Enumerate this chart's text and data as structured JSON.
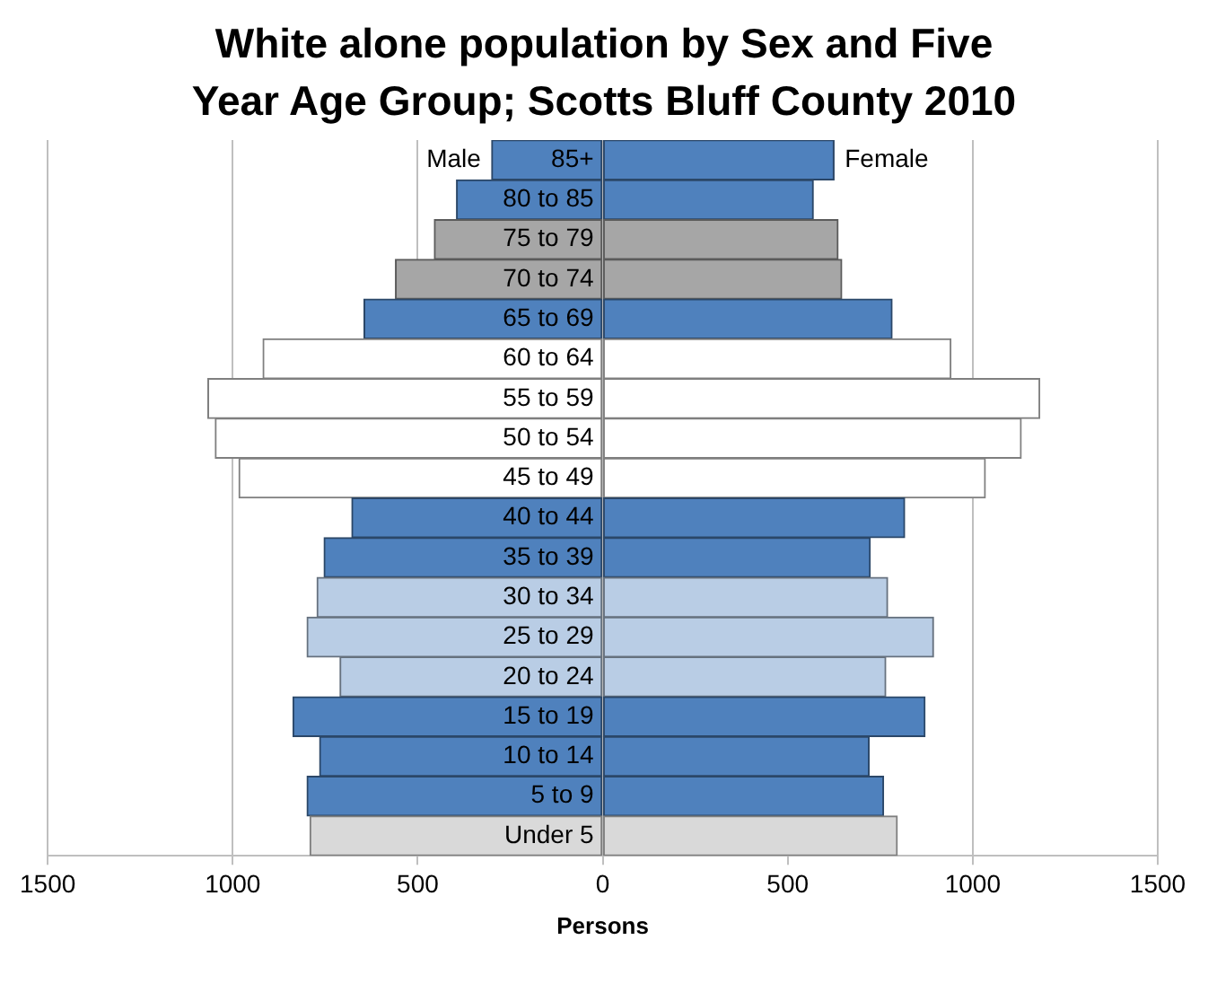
{
  "chart_data": {
    "type": "bar",
    "orientation": "horizontal",
    "stacked": true,
    "title": "White alone population by Sex and Five Year Age Group; Scotts Bluff County 2010",
    "xlabel": "Persons",
    "categories": [
      "85+",
      "80 to 85",
      "75 to 79",
      "70 to 74",
      "65 to 69",
      "60 to 64",
      "55 to 59",
      "50 to 54",
      "45 to 49",
      "40 to 44",
      "35 to 39",
      "30 to 34",
      "25 to 29",
      "20 to 24",
      "15 to 19",
      "10 to 14",
      "5 to 9",
      "Under 5"
    ],
    "series": [
      {
        "name": "Male",
        "colors": [
          "#4f81bd",
          "#4f81bd",
          "#a6a6a6",
          "#a6a6a6",
          "#4f81bd",
          "#ffffff",
          "#ffffff",
          "#ffffff",
          "#ffffff",
          "#4f81bd",
          "#4f81bd",
          "#b9cde5",
          "#b9cde5",
          "#b9cde5",
          "#4f81bd",
          "#4f81bd",
          "#4f81bd",
          "#d9d9d9"
        ],
        "values": [
          -300,
          -395,
          -455,
          -560,
          -645,
          -918,
          -1067,
          -1047,
          -983,
          -678,
          -753,
          -772,
          -799,
          -710,
          -837,
          -765,
          -799,
          -791
        ]
      },
      {
        "name": "Female",
        "colors": [
          "#4f81bd",
          "#4f81bd",
          "#a6a6a6",
          "#a6a6a6",
          "#4f81bd",
          "#ffffff",
          "#ffffff",
          "#ffffff",
          "#ffffff",
          "#4f81bd",
          "#4f81bd",
          "#b9cde5",
          "#b9cde5",
          "#b9cde5",
          "#4f81bd",
          "#4f81bd",
          "#4f81bd",
          "#d9d9d9"
        ],
        "values": [
          625,
          569,
          636,
          646,
          782,
          941,
          1181,
          1131,
          1034,
          816,
          723,
          770,
          894,
          765,
          871,
          720,
          759,
          796
        ]
      }
    ],
    "xlim": [
      -1500,
      1500
    ],
    "xticks": [
      {
        "value": -1500,
        "label": "1500"
      },
      {
        "value": -1000,
        "label": "1000"
      },
      {
        "value": -500,
        "label": "500"
      },
      0,
      500,
      1000,
      1500
    ],
    "grid": "x",
    "legend": false
  }
}
